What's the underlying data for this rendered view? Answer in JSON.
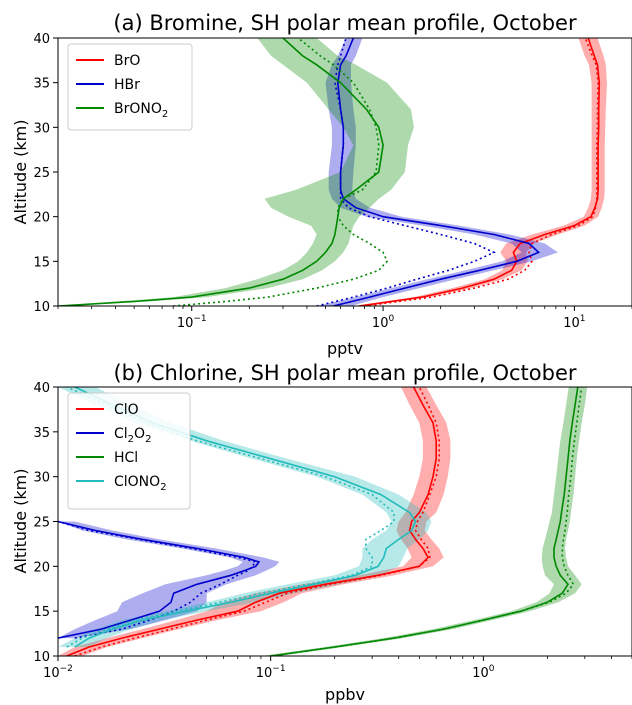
{
  "chart_data": [
    {
      "type": "line",
      "panel_label": "(a)",
      "title": "Bromine, SH polar mean profile, October",
      "xlabel": "pptv",
      "ylabel": "Altitude (km)",
      "xscale": "log",
      "xlim": [
        0.02,
        20
      ],
      "ylim": [
        10,
        40
      ],
      "xticks": [
        {
          "v": 0.1,
          "label": "10",
          "exp": "−1"
        },
        {
          "v": 1,
          "label": "10",
          "exp": "0"
        },
        {
          "v": 10,
          "label": "10",
          "exp": "1"
        }
      ],
      "yticks": [
        10,
        15,
        20,
        25,
        30,
        35,
        40
      ],
      "legend": "top-left",
      "grid": false,
      "series": [
        {
          "name": "BrO",
          "color": "#ff0000",
          "y": [
            10,
            11,
            12,
            13,
            14,
            15,
            16,
            17,
            18,
            19,
            20,
            21,
            22,
            23,
            25,
            28,
            30,
            32,
            35,
            37,
            38,
            40
          ],
          "mean": [
            0.75,
            1.6,
            2.6,
            3.8,
            4.7,
            5.0,
            4.8,
            5.2,
            7.0,
            10.0,
            12.2,
            12.8,
            13.2,
            13.3,
            13.3,
            13.3,
            13.4,
            13.4,
            13.5,
            13.2,
            12.7,
            11.8
          ],
          "lower": [
            0.7,
            1.45,
            2.3,
            3.4,
            4.2,
            4.4,
            4.1,
            4.4,
            6.0,
            8.8,
            11.2,
            11.8,
            12.2,
            12.3,
            12.3,
            12.3,
            12.3,
            12.3,
            12.3,
            11.9,
            11.3,
            10.5
          ],
          "upper": [
            0.8,
            1.75,
            2.9,
            4.2,
            5.3,
            5.7,
            5.6,
            6.1,
            8.2,
            11.3,
            13.3,
            13.9,
            14.3,
            14.4,
            14.4,
            14.4,
            14.5,
            14.6,
            14.8,
            14.6,
            14.2,
            13.2
          ],
          "dotted": [
            0.8,
            1.8,
            3.0,
            4.5,
            5.5,
            6.0,
            5.8,
            6.0,
            7.6,
            10.5,
            12.5,
            12.9,
            13.1,
            13.1,
            13.1,
            13.1,
            13.2,
            13.2,
            13.3,
            13.0,
            12.4,
            11.4
          ]
        },
        {
          "name": "HBr",
          "color": "#0000cc",
          "y": [
            10,
            11,
            12,
            13,
            14,
            15,
            16,
            17,
            18,
            19,
            20,
            21,
            22,
            23,
            25,
            28,
            30,
            32,
            35,
            37,
            38,
            40
          ],
          "mean": [
            0.55,
            0.85,
            1.3,
            2.0,
            3.2,
            5.0,
            6.5,
            5.8,
            3.8,
            2.0,
            1.0,
            0.72,
            0.62,
            0.6,
            0.6,
            0.62,
            0.62,
            0.6,
            0.58,
            0.6,
            0.64,
            0.7
          ],
          "lower": [
            0.45,
            0.72,
            1.1,
            1.7,
            2.7,
            4.2,
            5.3,
            4.7,
            3.0,
            1.6,
            0.82,
            0.6,
            0.54,
            0.52,
            0.52,
            0.54,
            0.54,
            0.52,
            0.5,
            0.54,
            0.58,
            0.64
          ],
          "upper": [
            0.68,
            1.0,
            1.55,
            2.4,
            3.8,
            6.0,
            8.2,
            7.0,
            4.6,
            2.5,
            1.25,
            0.85,
            0.72,
            0.69,
            0.7,
            0.72,
            0.72,
            0.7,
            0.68,
            0.68,
            0.72,
            0.78
          ],
          "dotted": [
            0.45,
            0.7,
            1.05,
            1.5,
            2.2,
            3.0,
            3.8,
            3.0,
            2.0,
            1.3,
            0.85,
            0.66,
            0.6,
            0.6,
            0.6,
            0.62,
            0.62,
            0.6,
            0.56,
            0.58,
            0.6,
            0.64
          ]
        },
        {
          "name": "BrONO",
          "name_sub": "2",
          "color": "#008800",
          "y": [
            10,
            10.5,
            11,
            12,
            13,
            14,
            15,
            16,
            17,
            18,
            19,
            20,
            21,
            22,
            23,
            25,
            28,
            30,
            32,
            35,
            37,
            38,
            40
          ],
          "mean": [
            0.02,
            0.05,
            0.1,
            0.2,
            0.3,
            0.38,
            0.45,
            0.5,
            0.54,
            0.56,
            0.57,
            0.58,
            0.59,
            0.62,
            0.72,
            0.95,
            1.0,
            0.95,
            0.82,
            0.6,
            0.45,
            0.38,
            0.3
          ],
          "lower": [
            0.02,
            0.04,
            0.08,
            0.15,
            0.22,
            0.3,
            0.36,
            0.4,
            0.43,
            0.45,
            0.42,
            0.32,
            0.26,
            0.24,
            0.35,
            0.6,
            0.7,
            0.62,
            0.52,
            0.4,
            0.3,
            0.26,
            0.22
          ],
          "upper": [
            0.02,
            0.06,
            0.12,
            0.25,
            0.38,
            0.48,
            0.56,
            0.62,
            0.66,
            0.68,
            0.7,
            0.75,
            0.85,
            0.95,
            1.1,
            1.3,
            1.35,
            1.45,
            1.4,
            1.05,
            0.72,
            0.58,
            0.45
          ],
          "dotted": [
            0.08,
            0.15,
            0.25,
            0.45,
            0.7,
            0.95,
            1.05,
            1.0,
            0.85,
            0.7,
            0.62,
            0.58,
            0.58,
            0.62,
            0.78,
            0.92,
            0.95,
            0.92,
            0.85,
            0.7,
            0.55,
            0.47,
            0.36
          ]
        }
      ]
    },
    {
      "type": "line",
      "panel_label": "(b)",
      "title": "Chlorine, SH polar mean profile, October",
      "xlabel": "ppbv",
      "ylabel": "Altitude (km)",
      "xscale": "log",
      "xlim": [
        0.01,
        5
      ],
      "ylim": [
        10,
        40
      ],
      "xticks": [
        {
          "v": 0.01,
          "label": "10",
          "exp": "−2"
        },
        {
          "v": 0.1,
          "label": "10",
          "exp": "−1"
        },
        {
          "v": 1,
          "label": "10",
          "exp": "0"
        }
      ],
      "yticks": [
        10,
        15,
        20,
        25,
        30,
        35,
        40
      ],
      "legend": "top-left",
      "grid": false,
      "series": [
        {
          "name": "ClO",
          "color": "#ff0000",
          "y": [
            10,
            11,
            12,
            13,
            14,
            15,
            16,
            17,
            18,
            19,
            20,
            21,
            22,
            23,
            24,
            25,
            26,
            28,
            30,
            32,
            34,
            36,
            38,
            40
          ],
          "mean": [
            0.011,
            0.014,
            0.02,
            0.03,
            0.045,
            0.07,
            0.085,
            0.11,
            0.18,
            0.32,
            0.5,
            0.55,
            0.52,
            0.48,
            0.45,
            0.46,
            0.5,
            0.55,
            0.58,
            0.6,
            0.6,
            0.58,
            0.52,
            0.47
          ],
          "lower": [
            0.01,
            0.012,
            0.017,
            0.025,
            0.036,
            0.05,
            0.06,
            0.085,
            0.14,
            0.26,
            0.42,
            0.46,
            0.44,
            0.41,
            0.39,
            0.4,
            0.43,
            0.47,
            0.5,
            0.52,
            0.52,
            0.5,
            0.45,
            0.41
          ],
          "upper": [
            0.013,
            0.017,
            0.025,
            0.037,
            0.056,
            0.09,
            0.115,
            0.14,
            0.22,
            0.38,
            0.58,
            0.65,
            0.62,
            0.57,
            0.53,
            0.54,
            0.6,
            0.65,
            0.68,
            0.7,
            0.7,
            0.67,
            0.6,
            0.54
          ],
          "dotted": [
            0.012,
            0.016,
            0.023,
            0.034,
            0.05,
            0.075,
            0.095,
            0.12,
            0.19,
            0.33,
            0.5,
            0.56,
            0.55,
            0.51,
            0.48,
            0.49,
            0.52,
            0.56,
            0.6,
            0.62,
            0.62,
            0.6,
            0.55,
            0.5
          ]
        },
        {
          "name": "Cl",
          "name_sub": "2",
          "name_tail": "O",
          "name_sub2": "2",
          "color": "#0000cc",
          "y": [
            12,
            13,
            14,
            15,
            16,
            17,
            18,
            19,
            19.5,
            20,
            20.5,
            21,
            22,
            23,
            24,
            25
          ],
          "mean": [
            0.01,
            0.016,
            0.022,
            0.03,
            0.034,
            0.035,
            0.045,
            0.065,
            0.075,
            0.085,
            0.088,
            0.075,
            0.045,
            0.025,
            0.015,
            0.01
          ],
          "lower": [
            0.01,
            0.012,
            0.015,
            0.019,
            0.02,
            0.025,
            0.032,
            0.05,
            0.06,
            0.07,
            0.074,
            0.064,
            0.038,
            0.021,
            0.013,
            0.01
          ],
          "upper": [
            0.012,
            0.022,
            0.032,
            0.045,
            0.05,
            0.05,
            0.062,
            0.085,
            0.095,
            0.105,
            0.11,
            0.092,
            0.055,
            0.03,
            0.018,
            0.012
          ],
          "dotted": [
            0.012,
            0.02,
            0.027,
            0.035,
            0.042,
            0.047,
            0.058,
            0.07,
            0.078,
            0.082,
            0.085,
            0.07,
            0.042,
            0.024,
            0.014,
            0.01
          ]
        },
        {
          "name": "HCl",
          "color": "#008800",
          "y": [
            10,
            11,
            12,
            13,
            14,
            15,
            16,
            17,
            18,
            19,
            20,
            21,
            22,
            23,
            24,
            25,
            26,
            28,
            30,
            32,
            34,
            36,
            38,
            40
          ],
          "mean": [
            0.1,
            0.2,
            0.38,
            0.65,
            1.0,
            1.5,
            2.0,
            2.35,
            2.5,
            2.3,
            2.2,
            2.15,
            2.15,
            2.2,
            2.25,
            2.3,
            2.33,
            2.4,
            2.45,
            2.5,
            2.55,
            2.62,
            2.7,
            2.78
          ],
          "lower": [
            0.09,
            0.18,
            0.34,
            0.58,
            0.9,
            1.35,
            1.78,
            2.05,
            2.15,
            1.95,
            1.9,
            1.88,
            1.9,
            1.95,
            2.0,
            2.05,
            2.1,
            2.15,
            2.2,
            2.25,
            2.3,
            2.38,
            2.45,
            2.52
          ],
          "upper": [
            0.11,
            0.22,
            0.42,
            0.72,
            1.1,
            1.65,
            2.25,
            2.7,
            2.9,
            2.7,
            2.5,
            2.45,
            2.42,
            2.45,
            2.5,
            2.55,
            2.58,
            2.65,
            2.7,
            2.75,
            2.82,
            2.9,
            3.0,
            3.08
          ],
          "dotted": [
            0.1,
            0.2,
            0.38,
            0.65,
            1.0,
            1.5,
            2.05,
            2.45,
            2.65,
            2.5,
            2.4,
            2.35,
            2.35,
            2.38,
            2.42,
            2.45,
            2.48,
            2.52,
            2.58,
            2.62,
            2.68,
            2.75,
            2.82,
            2.9
          ]
        },
        {
          "name": "ClONO",
          "name_sub": "2",
          "color": "#22bbbb",
          "y": [
            11,
            12,
            13,
            14,
            15,
            16,
            17,
            18,
            19,
            20,
            21,
            22,
            23,
            24,
            25,
            26,
            28,
            30,
            32,
            34,
            36,
            38,
            40
          ],
          "mean": [
            0.012,
            0.014,
            0.018,
            0.025,
            0.04,
            0.065,
            0.1,
            0.16,
            0.25,
            0.32,
            0.34,
            0.35,
            0.4,
            0.46,
            0.48,
            0.45,
            0.33,
            0.2,
            0.1,
            0.05,
            0.028,
            0.018,
            0.012
          ],
          "lower": [
            0.01,
            0.012,
            0.015,
            0.02,
            0.032,
            0.05,
            0.075,
            0.12,
            0.2,
            0.26,
            0.27,
            0.27,
            0.3,
            0.35,
            0.37,
            0.35,
            0.27,
            0.165,
            0.082,
            0.042,
            0.023,
            0.015,
            0.01
          ],
          "upper": [
            0.014,
            0.017,
            0.022,
            0.031,
            0.05,
            0.085,
            0.13,
            0.21,
            0.33,
            0.4,
            0.42,
            0.44,
            0.5,
            0.55,
            0.57,
            0.54,
            0.4,
            0.25,
            0.12,
            0.06,
            0.034,
            0.022,
            0.015
          ],
          "dotted": [
            0.011,
            0.013,
            0.017,
            0.023,
            0.036,
            0.058,
            0.09,
            0.15,
            0.24,
            0.3,
            0.3,
            0.28,
            0.28,
            0.33,
            0.38,
            0.38,
            0.3,
            0.18,
            0.09,
            0.045,
            0.026,
            0.017,
            0.011
          ]
        }
      ]
    }
  ]
}
